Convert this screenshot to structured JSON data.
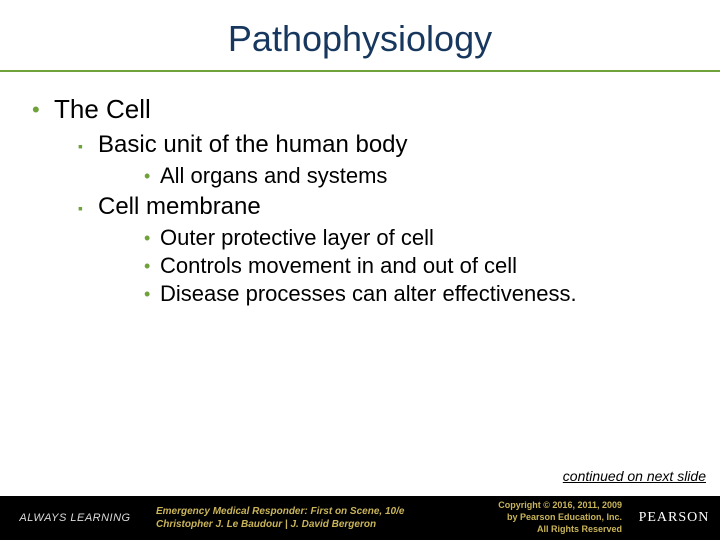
{
  "title": "Pathophysiology",
  "bullets": {
    "l1_0": "The Cell",
    "l2_0": "Basic unit of the human body",
    "l3_0": "All organs and systems",
    "l2_1": "Cell membrane",
    "l3_1": "Outer protective layer of cell",
    "l3_2": "Controls movement in and out of cell",
    "l3_3": "Disease processes can alter effectiveness."
  },
  "continued": "continued on next slide",
  "footer": {
    "always": "ALWAYS LEARNING",
    "book_title": "Emergency Medical Responder: First on Scene, 10/e",
    "authors": "Christopher J. Le Baudour | J. David Bergeron",
    "copyright_l1": "Copyright © 2016, 2011, 2009",
    "copyright_l2": "by Pearson Education, Inc.",
    "copyright_l3": "All Rights Reserved",
    "brand": "PEARSON"
  },
  "colors": {
    "title_color": "#17375e",
    "accent": "#6fa23a",
    "footer_bg": "#000000",
    "footer_text": "#c9b45a"
  }
}
